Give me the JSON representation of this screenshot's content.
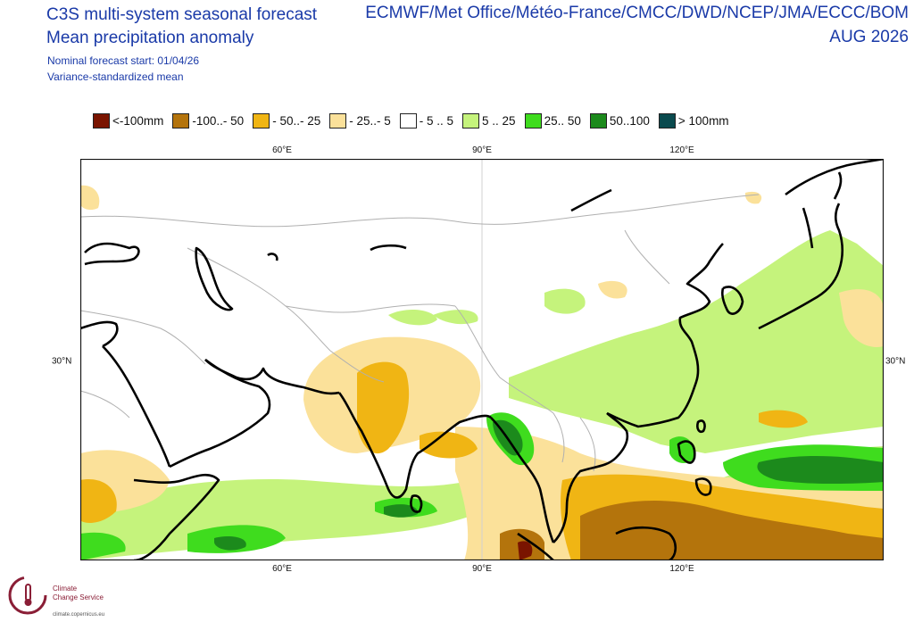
{
  "header": {
    "title_line1": "C3S multi-system seasonal forecast",
    "title_line2": "Mean precipitation anomaly",
    "subtitle_line1": "Nominal forecast start: 01/04/26",
    "subtitle_line2": "Variance-standardized mean",
    "sources": "ECMWF/Met Office/Météo-France/CMCC/DWD/NCEP/JMA/ECCC/BOM",
    "valid_period": "AUG 2026"
  },
  "legend": [
    {
      "label": "<-100mm",
      "color": "#7a1400"
    },
    {
      "label": "-100..- 50",
      "color": "#b4740c"
    },
    {
      "label": "- 50..- 25",
      "color": "#f0b514"
    },
    {
      "label": "- 25..- 5",
      "color": "#fbe19a"
    },
    {
      "label": "- 5 .. 5",
      "color": "#ffffff"
    },
    {
      "label": "5 .. 25",
      "color": "#c5f37c"
    },
    {
      "label": "25.. 50",
      "color": "#3fdc1e"
    },
    {
      "label": "50..100",
      "color": "#1c8a1c"
    },
    {
      "label": "> 100mm",
      "color": "#0a4a4e"
    }
  ],
  "axes": {
    "longitude_labels": [
      "60°E",
      "90°E",
      "120°E"
    ],
    "latitude_labels": [
      "30°N",
      "30°N"
    ]
  },
  "branding": {
    "service_name_line1": "Climate",
    "service_name_line2": "Change Service",
    "service_url": "climate.copernicus.eu"
  },
  "map": {
    "region": "South & East Asia",
    "colors": {
      "frame": "#111111",
      "coastline": "#000000",
      "borders": "#b0b0b0",
      "lines": "#d0d0d0"
    }
  }
}
